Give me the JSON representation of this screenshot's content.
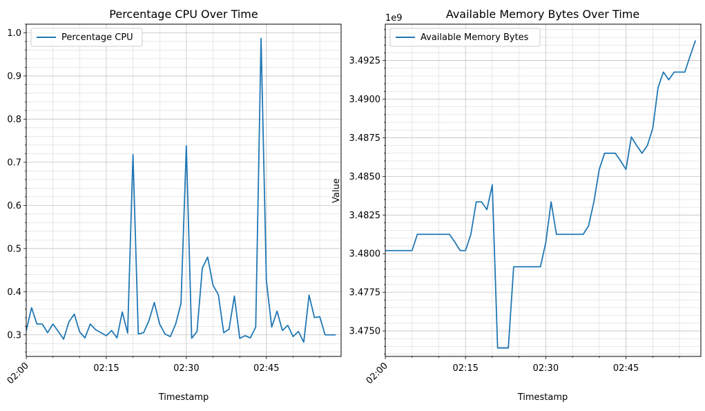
{
  "chart_data": [
    {
      "type": "line",
      "title": "Percentage CPU Over Time",
      "xlabel": "Timestamp",
      "ylabel": "",
      "x_ticks": [
        "02:00",
        "02:15",
        "02:30",
        "02:45"
      ],
      "y_ticks": [
        "0.3",
        "0.4",
        "0.5",
        "0.6",
        "0.7",
        "0.8",
        "0.9",
        "1.0"
      ],
      "ylim": [
        0.25,
        1.02
      ],
      "xlim_minutes": [
        0,
        59
      ],
      "grid": true,
      "legend_position": "upper-left",
      "color": "#1f77b4",
      "series": [
        {
          "name": "Percentage CPU",
          "x_minutes": [
            0,
            1,
            2,
            3,
            4,
            5,
            6,
            7,
            8,
            9,
            10,
            11,
            12,
            13,
            14,
            15,
            16,
            17,
            18,
            19,
            20,
            21,
            22,
            23,
            24,
            25,
            26,
            27,
            28,
            29,
            30,
            31,
            32,
            33,
            34,
            35,
            36,
            37,
            38,
            39,
            40,
            41,
            42,
            43,
            44,
            45,
            46,
            47,
            48,
            49,
            50,
            51,
            52,
            53,
            54,
            55,
            56,
            57,
            58
          ],
          "values": [
            0.31,
            0.363,
            0.325,
            0.325,
            0.305,
            0.325,
            0.308,
            0.29,
            0.33,
            0.348,
            0.307,
            0.293,
            0.325,
            0.312,
            0.305,
            0.298,
            0.31,
            0.293,
            0.353,
            0.304,
            0.718,
            0.302,
            0.305,
            0.333,
            0.375,
            0.325,
            0.302,
            0.296,
            0.325,
            0.373,
            0.738,
            0.292,
            0.308,
            0.455,
            0.48,
            0.415,
            0.393,
            0.305,
            0.313,
            0.39,
            0.292,
            0.298,
            0.293,
            0.318,
            0.987,
            0.425,
            0.318,
            0.355,
            0.31,
            0.322,
            0.296,
            0.308,
            0.283,
            0.392,
            0.34,
            0.342,
            0.3,
            0.3,
            0.3
          ]
        }
      ]
    },
    {
      "type": "line",
      "title": "Available Memory Bytes Over Time",
      "xlabel": "Timestamp",
      "ylabel": "Value",
      "offset_text": "1e9",
      "x_ticks": [
        "02:00",
        "02:15",
        "02:30",
        "02:45"
      ],
      "y_ticks": [
        "3.4750",
        "3.4775",
        "3.4800",
        "3.4825",
        "3.4850",
        "3.4875",
        "3.4900",
        "3.4925"
      ],
      "ylim": [
        3.47335,
        3.49485
      ],
      "xlim_minutes": [
        0,
        59
      ],
      "grid": true,
      "legend_position": "upper-left",
      "color": "#1f77b4",
      "series": [
        {
          "name": "Available Memory Bytes",
          "x_minutes": [
            0,
            1,
            2,
            3,
            4,
            5,
            6,
            7,
            8,
            9,
            10,
            11,
            12,
            13,
            14,
            15,
            16,
            17,
            18,
            19,
            20,
            21,
            22,
            23,
            24,
            25,
            26,
            27,
            28,
            29,
            30,
            31,
            32,
            33,
            34,
            35,
            36,
            37,
            38,
            39,
            40,
            41,
            42,
            43,
            44,
            45,
            46,
            47,
            48,
            49,
            50,
            51,
            52,
            53,
            54,
            55,
            56,
            57,
            58
          ],
          "values": [
            3.4802,
            3.4802,
            3.4802,
            3.4802,
            3.4802,
            3.4802,
            3.48125,
            3.48125,
            3.48125,
            3.48125,
            3.48125,
            3.48125,
            3.48125,
            3.48075,
            3.4802,
            3.4802,
            3.48125,
            3.48335,
            3.48335,
            3.48285,
            3.48445,
            3.4739,
            3.4739,
            3.4739,
            3.47915,
            3.47915,
            3.47915,
            3.47915,
            3.47915,
            3.47915,
            3.4807,
            3.48335,
            3.48125,
            3.48125,
            3.48125,
            3.48125,
            3.48125,
            3.48125,
            3.4818,
            3.48335,
            3.48545,
            3.4865,
            3.4865,
            3.4865,
            3.486,
            3.48545,
            3.48755,
            3.487,
            3.4865,
            3.487,
            3.4881,
            3.49075,
            3.49175,
            3.49125,
            3.49175,
            3.49175,
            3.49175,
            3.4928,
            3.4938
          ]
        }
      ]
    }
  ]
}
